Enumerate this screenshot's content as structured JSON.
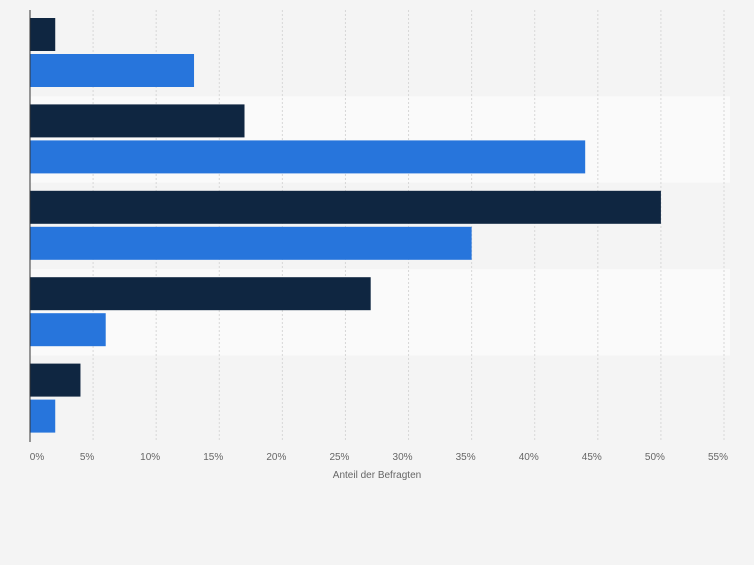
{
  "chart_data": {
    "type": "bar",
    "orientation": "horizontal",
    "categories": [
      "",
      "",
      "",
      "",
      ""
    ],
    "series": [
      {
        "values": [
          2,
          17,
          50,
          27,
          4
        ],
        "color": "#0f2641"
      },
      {
        "values": [
          13,
          44,
          35,
          6,
          2
        ],
        "color": "#2775dc"
      }
    ],
    "xlabel": "Anteil der Befragten",
    "xlim": [
      0,
      55
    ],
    "xticks": [
      0,
      5,
      10,
      15,
      20,
      25,
      30,
      35,
      40,
      45,
      50,
      55
    ],
    "tick_labels": [
      "0%",
      "5%",
      "10%",
      "15%",
      "20%",
      "25%",
      "30%",
      "35%",
      "40%",
      "45%",
      "50%",
      "55%"
    ],
    "grid": true,
    "legend": false
  }
}
